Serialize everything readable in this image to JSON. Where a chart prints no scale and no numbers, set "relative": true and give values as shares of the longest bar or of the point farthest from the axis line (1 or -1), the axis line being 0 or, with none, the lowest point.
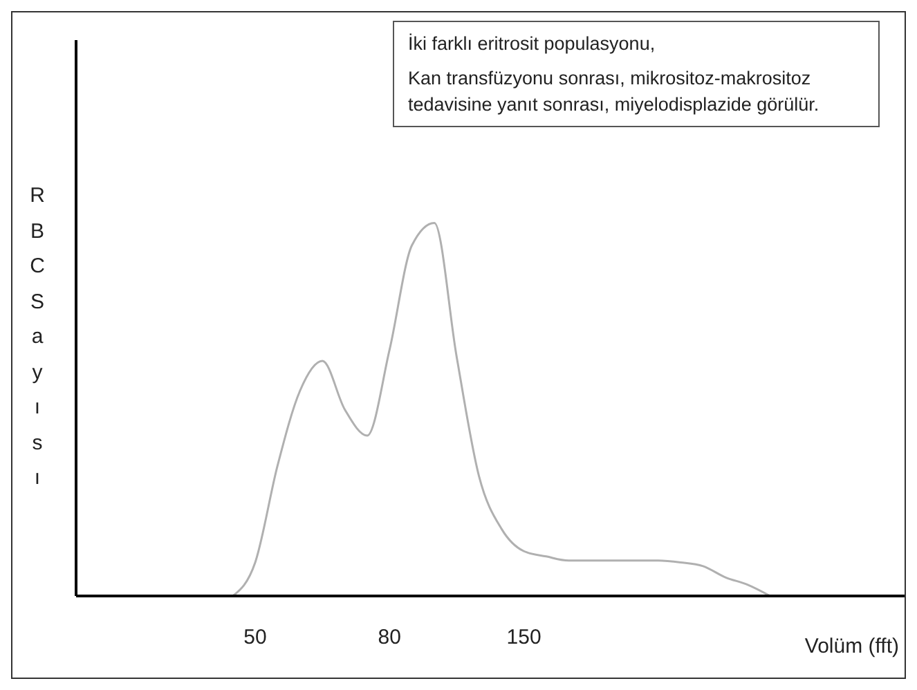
{
  "chart_data": {
    "type": "line",
    "relative": true,
    "categories": [
      null,
      null,
      null,
      null,
      null,
      null,
      null,
      null,
      "50",
      null,
      null,
      null,
      null,
      null,
      "80",
      null,
      null,
      null,
      null,
      null,
      "150",
      null,
      null,
      null,
      null,
      null,
      null,
      null,
      null,
      null,
      null,
      null,
      null,
      null,
      null,
      null,
      null,
      null
    ],
    "series": [
      {
        "color": "#b0b0b0",
        "values": [
          null,
          null,
          null,
          null,
          null,
          null,
          null,
          0,
          0.09,
          0.35,
          0.55,
          0.63,
          0.5,
          0.43,
          0.66,
          0.94,
          1,
          0.64,
          0.32,
          0.18,
          0.12,
          0.106,
          0.095,
          0.095,
          0.095,
          0.095,
          0.095,
          0.09,
          0.08,
          0.05,
          0.03,
          0,
          null,
          null,
          null,
          null,
          null,
          null
        ]
      }
    ],
    "ylabel": "RBC Sayısı",
    "xlabel": "Volüm (fft)",
    "annotations": [
      "İki farklı eritrosit populasyonu,",
      "Kan transfüzyonu sonrası, mikrositoz-makrositoz tedavisine yanıt sonrası, miyelodisplazide görülür."
    ],
    "marker": "none",
    "line_style": "solid"
  }
}
